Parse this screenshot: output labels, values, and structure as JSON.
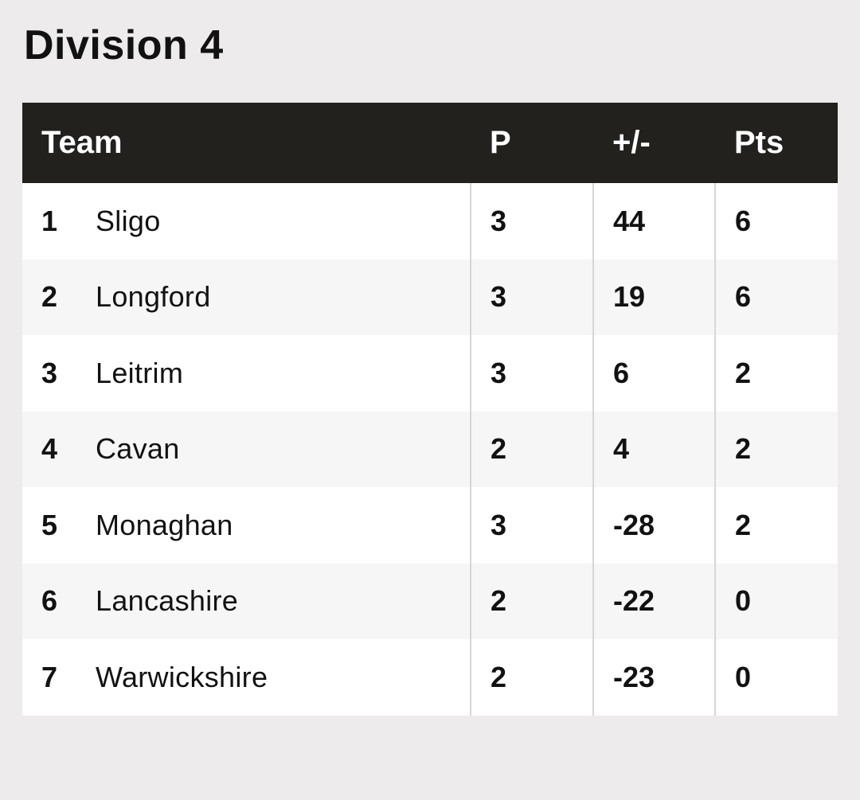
{
  "page": {
    "title": "Division 4"
  },
  "table": {
    "headers": {
      "team": "Team",
      "played": "P",
      "diff": "+/-",
      "points": "Pts"
    },
    "rows": [
      {
        "pos": "1",
        "team": "Sligo",
        "played": "3",
        "diff": "44",
        "points": "6"
      },
      {
        "pos": "2",
        "team": "Longford",
        "played": "3",
        "diff": "19",
        "points": "6"
      },
      {
        "pos": "3",
        "team": "Leitrim",
        "played": "3",
        "diff": "6",
        "points": "2"
      },
      {
        "pos": "4",
        "team": "Cavan",
        "played": "2",
        "diff": "4",
        "points": "2"
      },
      {
        "pos": "5",
        "team": "Monaghan",
        "played": "3",
        "diff": "-28",
        "points": "2"
      },
      {
        "pos": "6",
        "team": "Lancashire",
        "played": "2",
        "diff": "-22",
        "points": "0"
      },
      {
        "pos": "7",
        "team": "Warwickshire",
        "played": "2",
        "diff": "-23",
        "points": "0"
      }
    ]
  },
  "colors": {
    "background": "#edebeb",
    "header_bg": "#22211e",
    "header_text": "#ffffff",
    "row_alt": "#f6f6f6",
    "row": "#ffffff"
  }
}
